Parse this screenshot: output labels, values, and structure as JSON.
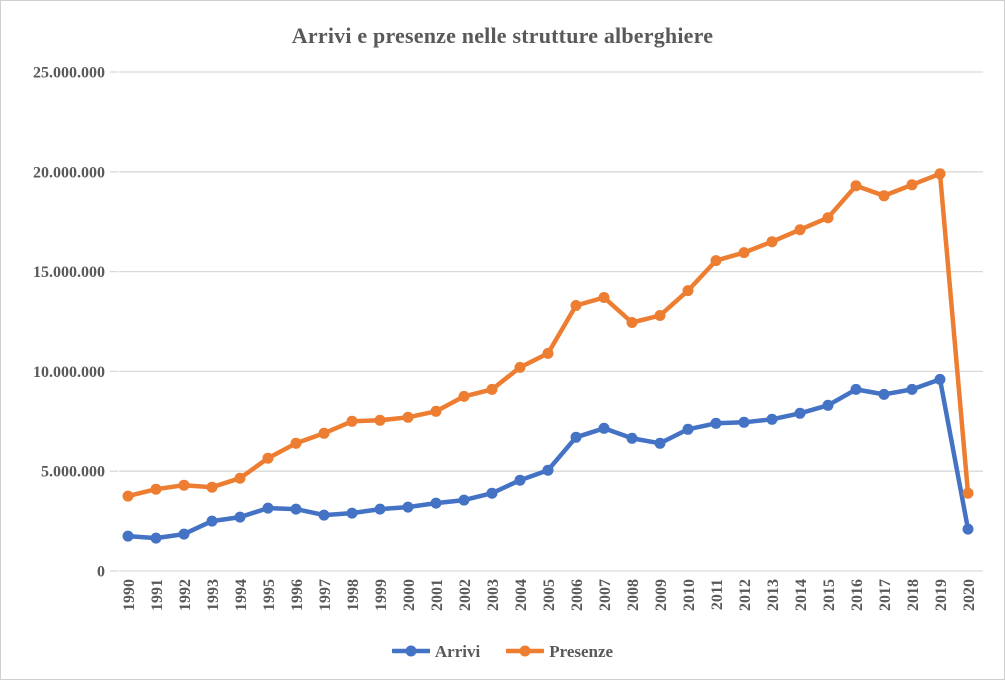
{
  "chart_data": {
    "type": "line",
    "title": "Arrivi e presenze nelle strutture alberghiere",
    "xlabel": "",
    "ylabel": "",
    "x": [
      "1990",
      "1991",
      "1992",
      "1993",
      "1994",
      "1995",
      "1996",
      "1997",
      "1998",
      "1999",
      "2000",
      "2001",
      "2002",
      "2003",
      "2004",
      "2005",
      "2006",
      "2007",
      "2008",
      "2009",
      "2010",
      "2011",
      "2012",
      "2013",
      "2014",
      "2015",
      "2016",
      "2017",
      "2018",
      "2019",
      "2020"
    ],
    "series": [
      {
        "name": "Arrivi",
        "color": "#4472C4",
        "marker": "circle",
        "values": [
          1750000,
          1650000,
          1850000,
          2500000,
          2700000,
          3150000,
          3100000,
          2800000,
          2900000,
          3100000,
          3200000,
          3400000,
          3550000,
          3900000,
          4550000,
          5050000,
          6700000,
          7150000,
          6650000,
          6400000,
          7100000,
          7400000,
          7450000,
          7600000,
          7900000,
          8300000,
          9100000,
          8850000,
          9100000,
          9600000,
          2100000
        ]
      },
      {
        "name": "Presenze",
        "color": "#ED7D31",
        "marker": "circle",
        "values": [
          3750000,
          4100000,
          4300000,
          4200000,
          4650000,
          5650000,
          6400000,
          6900000,
          7500000,
          7550000,
          7700000,
          8000000,
          8750000,
          9100000,
          10200000,
          10900000,
          13300000,
          13700000,
          12450000,
          12800000,
          14050000,
          15550000,
          15950000,
          16500000,
          17100000,
          17700000,
          19300000,
          18800000,
          19350000,
          19900000,
          3900000
        ]
      }
    ],
    "ylim": [
      0,
      25000000
    ],
    "y_ticks": [
      {
        "value": 0,
        "label": "0"
      },
      {
        "value": 5000000,
        "label": "5.000.000"
      },
      {
        "value": 10000000,
        "label": "10.000.000"
      },
      {
        "value": 15000000,
        "label": "15.000.000"
      },
      {
        "value": 20000000,
        "label": "20.000.000"
      },
      {
        "value": 25000000,
        "label": "25.000.000"
      }
    ],
    "grid": "horizontal",
    "legend_position": "bottom",
    "colors": {
      "text": "#595959",
      "gridline": "#D9D9D9",
      "background": "#FFFFFF",
      "border": "#CFCFCF"
    }
  }
}
